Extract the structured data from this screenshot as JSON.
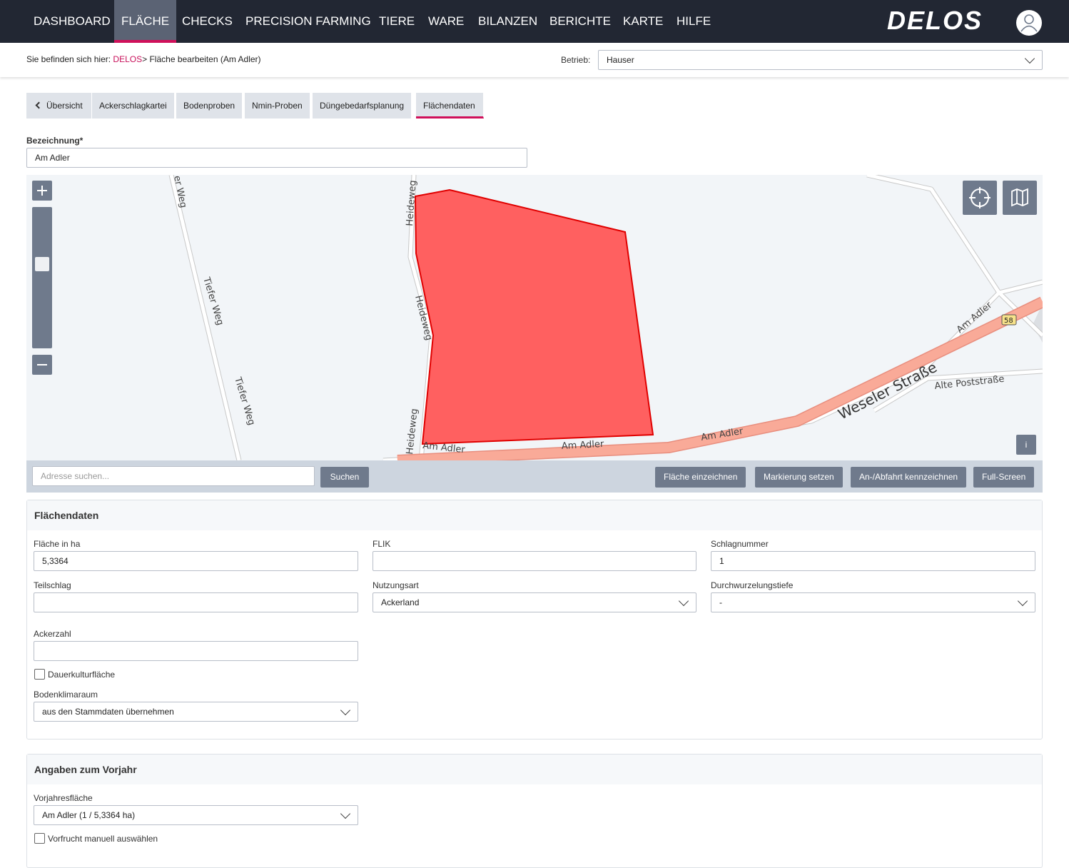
{
  "nav": {
    "items": [
      "DASHBOARD",
      "FLÄCHE",
      "CHECKS",
      "PRECISION FARMING",
      "TIERE",
      "WARE",
      "BILANZEN",
      "BERICHTE",
      "KARTE",
      "HILFE"
    ],
    "active": 1,
    "logo": "DELOS"
  },
  "breadcrumb": {
    "prefix": "Sie befinden sich hier:",
    "home": "DELOS",
    "separator": ">",
    "current": "Fläche bearbeiten (Am Adler)"
  },
  "betrieb": {
    "label": "Betrieb:",
    "value": "Hauser"
  },
  "tabs": {
    "items": [
      "Übersicht",
      "Ackerschlagkartei",
      "Bodenproben",
      "Nmin-Proben",
      "Düngebedarfsplanung",
      "Flächendaten"
    ],
    "active": 5
  },
  "bezeichnung": {
    "label": "Bezeichnung*",
    "value": "Am Adler"
  },
  "map": {
    "labels": [
      "er Weg",
      "Tiefer Weg",
      "Tiefer Weg",
      "Heideweg",
      "Heideweg",
      "Heideweg",
      "Am Adler",
      "Am Adler",
      "Am Adler",
      "Am Adler",
      "Weseler Straße",
      "Alte Poststraße",
      "58"
    ],
    "info": "i",
    "search_placeholder": "Adresse suchen...",
    "search_button": "Suchen",
    "buttons": [
      "Fläche einzeichnen",
      "Markierung setzen",
      "An-/Abfahrt kennzeichnen",
      "Full-Screen"
    ]
  },
  "flaechendaten": {
    "title": "Flächendaten",
    "flaeche": {
      "label": "Fläche in ha",
      "value": "5,3364"
    },
    "flik": {
      "label": "FLIK",
      "value": ""
    },
    "schlagnummer": {
      "label": "Schlagnummer",
      "value": "1"
    },
    "teilschlag": {
      "label": "Teilschlag",
      "value": ""
    },
    "nutzungsart": {
      "label": "Nutzungsart",
      "value": "Ackerland"
    },
    "durchwurzelungstiefe": {
      "label": "Durchwurzelungstiefe",
      "value": "-"
    },
    "ackerzahl": {
      "label": "Ackerzahl",
      "value": ""
    },
    "dauerkultur": {
      "label": "Dauerkulturfläche"
    },
    "bodenklimaraum": {
      "label": "Bodenklimaraum",
      "value": "aus den Stammdaten übernehmen"
    }
  },
  "vorjahr": {
    "title": "Angaben zum Vorjahr",
    "vorjahresflaeche": {
      "label": "Vorjahresfläche",
      "value": "Am Adler (1 / 5,3364 ha)"
    },
    "vorfrucht": {
      "label": "Vorfrucht manuell auswählen"
    }
  }
}
